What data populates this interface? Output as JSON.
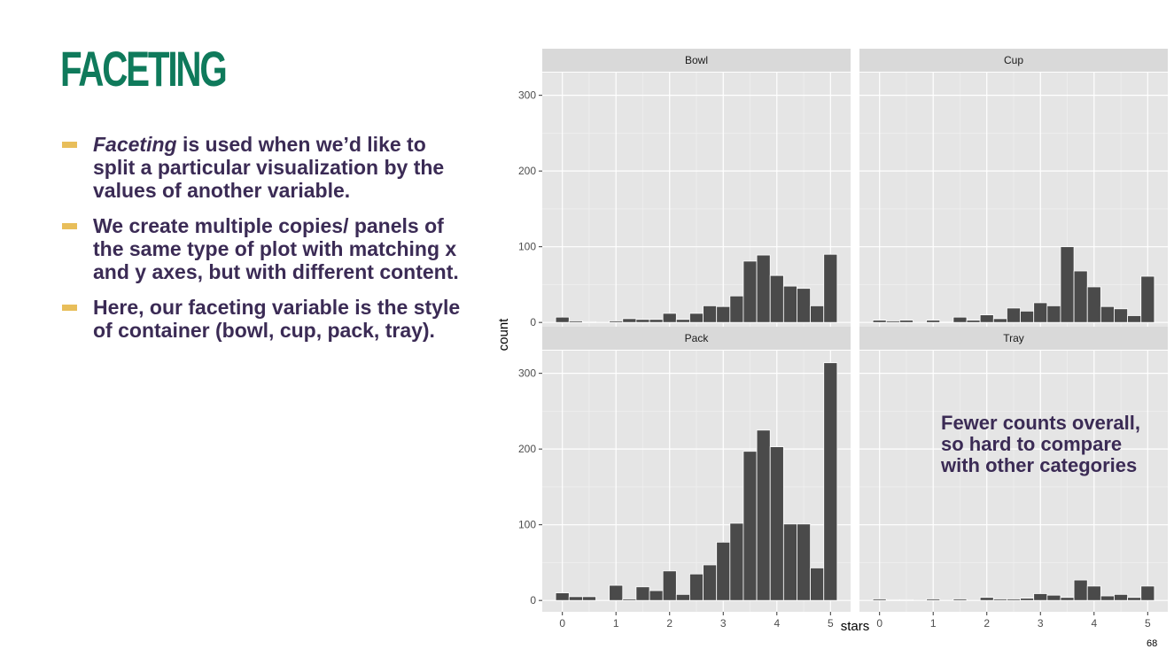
{
  "slide": {
    "title": "FACETING",
    "bullets": [
      {
        "em": "Faceting",
        "text": " is used when we’d like to split a particular visualization by the values of another variable."
      },
      {
        "em": "",
        "text": "We create multiple copies/ panels of the same type of plot with matching x and y axes, but with different content."
      },
      {
        "em": "",
        "text": "Here, our faceting variable is the style of container (bowl, cup, pack, tray)."
      }
    ],
    "annotation": "Fewer counts overall, so hard to compare with other categories",
    "page_number": "68"
  },
  "colors": {
    "title": "#0f7a5b",
    "text": "#3b2b55",
    "bullet_marker": "#e8be5a",
    "panel_bg": "#e5e5e5",
    "strip_bg": "#d9d9d9",
    "bar_fill": "#4a4a4a"
  },
  "chart_data": {
    "type": "bar",
    "subtype": "faceted-histogram",
    "xlabel": "stars",
    "ylabel": "count",
    "x_ticks": [
      0,
      1,
      2,
      3,
      4,
      5
    ],
    "y_ticks": [
      0,
      100,
      200,
      300
    ],
    "xlim": [
      -0.375,
      5.375
    ],
    "ylim": [
      -15,
      330
    ],
    "bin_width": 0.25,
    "bin_centers": [
      0,
      0.25,
      0.5,
      0.75,
      1,
      1.25,
      1.5,
      1.75,
      2,
      2.25,
      2.5,
      2.75,
      3,
      3.25,
      3.5,
      3.75,
      4,
      4.25,
      4.5,
      4.75,
      5
    ],
    "grid": true,
    "facets": [
      {
        "name": "Bowl",
        "values": [
          7,
          2,
          1,
          0,
          2,
          5,
          4,
          4,
          12,
          4,
          12,
          22,
          21,
          35,
          81,
          89,
          62,
          48,
          45,
          22,
          90
        ]
      },
      {
        "name": "Cup",
        "values": [
          3,
          2,
          3,
          0,
          3,
          1,
          7,
          3,
          10,
          5,
          19,
          15,
          26,
          22,
          100,
          68,
          47,
          21,
          18,
          9,
          61
        ]
      },
      {
        "name": "Pack",
        "values": [
          10,
          5,
          5,
          0,
          20,
          2,
          18,
          13,
          39,
          8,
          35,
          47,
          77,
          102,
          197,
          225,
          203,
          101,
          101,
          43,
          314
        ]
      },
      {
        "name": "Tray",
        "values": [
          2,
          1,
          1,
          0,
          2,
          0,
          2,
          0,
          4,
          2,
          2,
          3,
          9,
          7,
          4,
          27,
          19,
          6,
          8,
          4,
          19
        ]
      }
    ]
  }
}
